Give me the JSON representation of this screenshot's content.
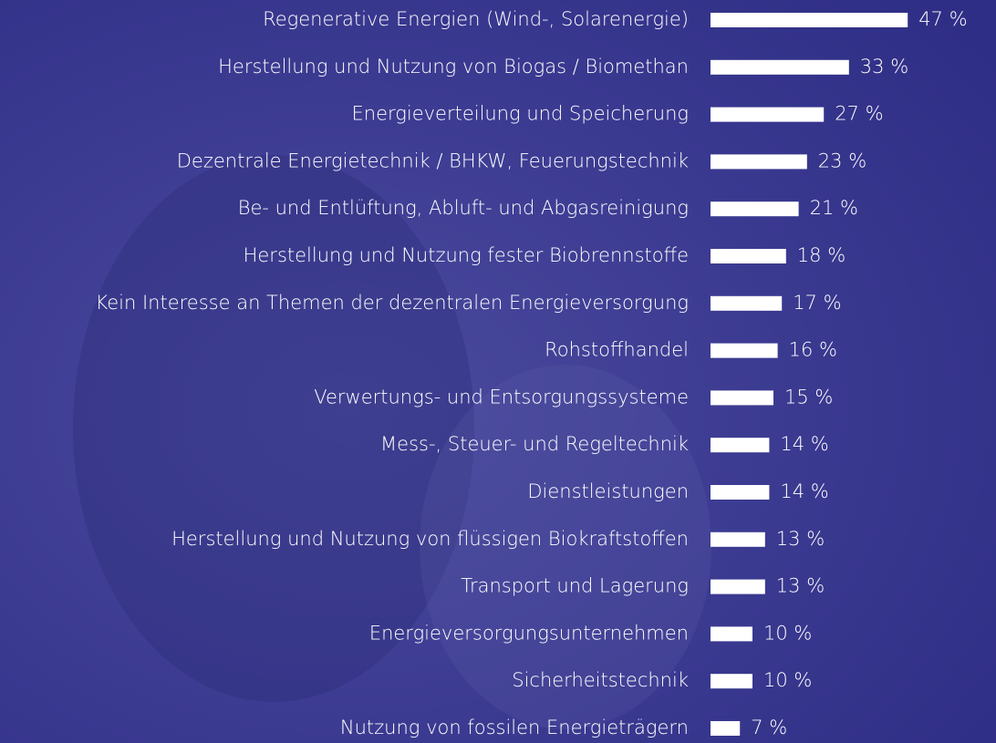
{
  "chart_data": {
    "type": "bar",
    "orientation": "horizontal",
    "color": "#ffffff",
    "categories": [
      "Regenerative Energien (Wind-, Solarenergie)",
      "Herstellung und Nutzung von Biogas / Biomethan",
      "Energieverteilung und Speicherung",
      "Dezentrale Energietechnik / BHKW, Feuerungstechnik",
      "Be- und Entlüftung, Abluft- und Abgasreinigung",
      "Herstellung und Nutzung fester Biobrennstoffe",
      "Kein Interesse an Themen der dezentralen Energieversorgung",
      "Rohstoffhandel",
      "Verwertungs- und Entsorgungssysteme",
      "Mess-, Steuer- und Regeltechnik",
      "Dienstleistungen",
      "Herstellung und Nutzung von flüssigen Biokraftstoffen",
      "Transport und Lagerung",
      "Energieversorgungsunternehmen",
      "Sicherheitstechnik",
      "Nutzung von fossilen Energieträgern"
    ],
    "values": [
      47,
      33,
      27,
      23,
      21,
      18,
      17,
      16,
      15,
      14,
      14,
      13,
      13,
      10,
      10,
      7
    ],
    "value_labels": [
      "47 %",
      "33 %",
      "27 %",
      "23 %",
      "21 %",
      "18 %",
      "17 %",
      "16 %",
      "15 %",
      "14 %",
      "14 %",
      "13 %",
      "13 %",
      "10 %",
      "10 %",
      "7 %"
    ]
  }
}
